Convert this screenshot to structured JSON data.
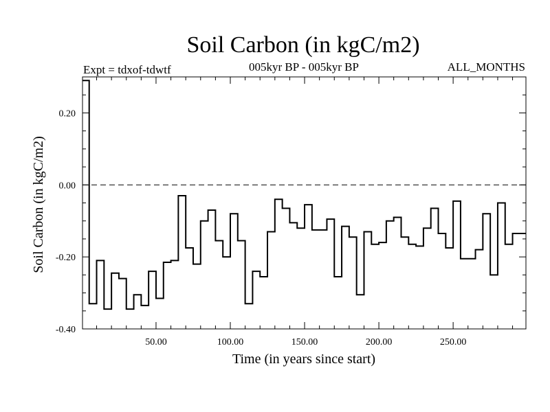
{
  "chart_data": {
    "type": "line",
    "title": "Soil Carbon (in kgC/m2)",
    "subtitle": "005kyr BP - 005kyr BP",
    "experiment": "Expt = tdxof-tdwtf",
    "period": "ALL_MONTHS",
    "xlabel": "Time (in years since start)",
    "ylabel": "Soil Carbon (in kgC/m2)",
    "xlim": [
      0.5,
      299
    ],
    "ylim": [
      -0.4,
      0.3
    ],
    "xticks": [
      50,
      100,
      150,
      200,
      250
    ],
    "xtick_labels": [
      "50.00",
      "100.00",
      "150.00",
      "200.00",
      "250.00"
    ],
    "yticks": [
      -0.4,
      -0.2,
      0.0,
      0.2
    ],
    "ytick_labels": [
      "-0.40",
      "-0.20",
      "0.00",
      "0.20"
    ],
    "reference_line": 0.0,
    "step": true,
    "series": [
      {
        "name": "Soil Carbon",
        "x": [
          0.5,
          5,
          10,
          15,
          20,
          25,
          30,
          35,
          40,
          45,
          50,
          55,
          60,
          65,
          70,
          75,
          80,
          85,
          90,
          95,
          100,
          105,
          110,
          115,
          120,
          125,
          130,
          135,
          140,
          145,
          150,
          155,
          160,
          165,
          170,
          175,
          180,
          185,
          190,
          195,
          200,
          205,
          210,
          215,
          220,
          225,
          230,
          235,
          240,
          245,
          250,
          255,
          260,
          265,
          270,
          275,
          280,
          285,
          290,
          295
        ],
        "values": [
          0.29,
          -0.33,
          -0.21,
          -0.345,
          -0.245,
          -0.26,
          -0.345,
          -0.305,
          -0.335,
          -0.24,
          -0.315,
          -0.215,
          -0.21,
          -0.03,
          -0.175,
          -0.22,
          -0.1,
          -0.07,
          -0.155,
          -0.2,
          -0.08,
          -0.155,
          -0.33,
          -0.24,
          -0.255,
          -0.13,
          -0.04,
          -0.065,
          -0.105,
          -0.12,
          -0.055,
          -0.125,
          -0.125,
          -0.095,
          -0.255,
          -0.115,
          -0.145,
          -0.305,
          -0.13,
          -0.165,
          -0.16,
          -0.1,
          -0.09,
          -0.145,
          -0.165,
          -0.17,
          -0.12,
          -0.065,
          -0.135,
          -0.175,
          -0.045,
          -0.205,
          -0.205,
          -0.18,
          -0.08,
          -0.25,
          -0.05,
          -0.165,
          -0.135,
          -0.135
        ]
      }
    ]
  }
}
